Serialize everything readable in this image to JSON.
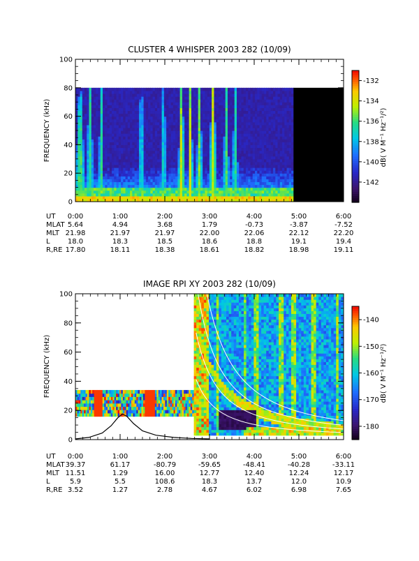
{
  "chart_data": [
    {
      "type": "heatmap",
      "title": "CLUSTER 4 WHISPER 2003 282 (10/09)",
      "ylabel": "FREQUENCY (kHz)",
      "ylim": [
        0,
        100
      ],
      "yticks": [
        "0",
        "20",
        "40",
        "60",
        "80",
        "100"
      ],
      "colorbar": {
        "label": "dB( V M⁻¹ Hz⁻¹/²)",
        "range": [
          -144,
          -131
        ],
        "ticks": [
          "-132",
          "-134",
          "-136",
          "-138",
          "-140",
          "-142"
        ]
      },
      "data_frequency_max": 80,
      "data_end_hours": 4.88,
      "ephemeris": {
        "labels": [
          "UT",
          "MLAT",
          "MLT",
          "L",
          "R,RE"
        ],
        "columns": [
          [
            "0:00",
            "5.64",
            "21.98",
            "18.0",
            "17.80"
          ],
          [
            "1:00",
            "4.94",
            "21.97",
            "18.3",
            "18.11"
          ],
          [
            "2:00",
            "3.68",
            "21.97",
            "18.5",
            "18.38"
          ],
          [
            "3:00",
            "1.79",
            "22.00",
            "18.6",
            "18.61"
          ],
          [
            "4:00",
            "-0.73",
            "22.06",
            "18.8",
            "18.82"
          ],
          [
            "5:00",
            "-3.87",
            "22.12",
            "19.1",
            "18.98"
          ],
          [
            "6:00",
            "-7.52",
            "22.20",
            "19.4",
            "19.11"
          ]
        ]
      }
    },
    {
      "type": "heatmap",
      "title": "IMAGE RPI XY 2003 282 (10/09)",
      "ylabel": "FREQUENCY (kHz)",
      "ylim": [
        0,
        100
      ],
      "yticks": [
        "0",
        "20",
        "40",
        "60",
        "80",
        "100"
      ],
      "colorbar": {
        "label": "dB( V M⁻¹ Hz⁻¹/²)",
        "range": [
          -185,
          -135
        ],
        "ticks": [
          "-140",
          "-150",
          "-160",
          "-170",
          "-180"
        ]
      },
      "early_band_khz": [
        16,
        34
      ],
      "early_end_hours": 2.65,
      "plasma_freq_curve": {
        "t_hours": [
          0,
          0.3,
          0.6,
          0.8,
          0.95,
          1.05,
          1.15,
          1.3,
          1.5,
          1.8,
          2.2,
          2.6,
          3.0
        ],
        "f_khz": [
          0.5,
          1.5,
          4.5,
          9.5,
          15,
          17.5,
          16,
          11,
          6,
          3,
          1.5,
          0.8,
          0.5
        ]
      },
      "ephemeris": {
        "labels": [
          "UT",
          "MLAT",
          "MLT",
          "L",
          "R,RE"
        ],
        "columns": [
          [
            "0:00",
            "39.37",
            "11.51",
            "5.9",
            "3.52"
          ],
          [
            "1:00",
            "61.17",
            "1.29",
            "5.5",
            "1.27"
          ],
          [
            "2:00",
            "-80.79",
            "16.00",
            "108.6",
            "2.78"
          ],
          [
            "3:00",
            "-59.65",
            "12.77",
            "18.3",
            "4.67"
          ],
          [
            "4:00",
            "-48.41",
            "12.40",
            "13.7",
            "6.02"
          ],
          [
            "5:00",
            "-40.28",
            "12.24",
            "12.0",
            "6.98"
          ],
          [
            "6:00",
            "-33.11",
            "12.17",
            "10.9",
            "7.65"
          ]
        ]
      }
    }
  ]
}
